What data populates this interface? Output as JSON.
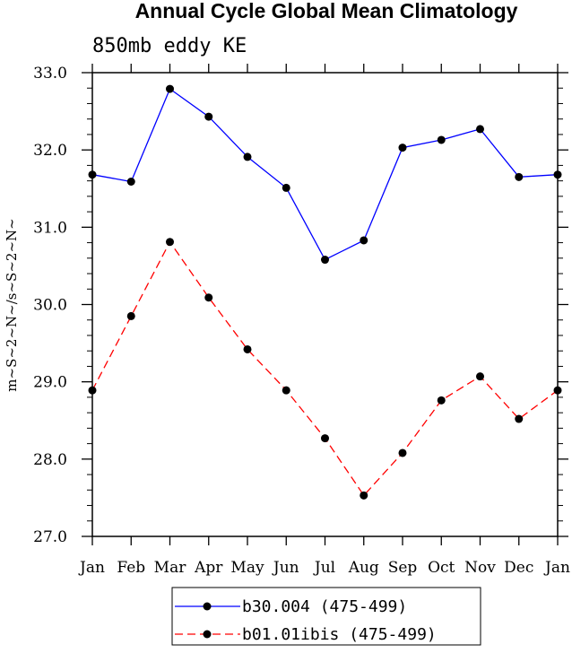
{
  "chart_data": {
    "type": "line",
    "title": "Annual Cycle Global Mean Climatology",
    "subtitle": "850mb eddy KE",
    "ylabel": "m~S~2~N~/s~S~2~N~",
    "xlabel": "",
    "ylim": [
      27.0,
      33.0
    ],
    "yticks": [
      "27.0",
      "28.0",
      "29.0",
      "30.0",
      "31.0",
      "32.0",
      "33.0"
    ],
    "categories": [
      "Jan",
      "Feb",
      "Mar",
      "Apr",
      "May",
      "Jun",
      "Jul",
      "Aug",
      "Sep",
      "Oct",
      "Nov",
      "Dec",
      "Jan"
    ],
    "grid": false,
    "legend_position": "bottom-center",
    "series": [
      {
        "name": "b30.004 (475-499)",
        "color": "#0000ff",
        "dash": "solid",
        "marker": "filled-circle",
        "values": [
          31.68,
          31.59,
          32.79,
          32.43,
          31.91,
          31.51,
          30.58,
          30.83,
          32.03,
          32.13,
          32.27,
          31.65,
          31.68
        ]
      },
      {
        "name": "b01.01ibis (475-499)",
        "color": "#ff0000",
        "dash": "dashed",
        "marker": "filled-circle",
        "values": [
          28.89,
          29.85,
          30.81,
          30.09,
          29.42,
          28.89,
          28.27,
          27.53,
          28.08,
          28.76,
          29.07,
          28.52,
          28.89
        ]
      }
    ]
  }
}
